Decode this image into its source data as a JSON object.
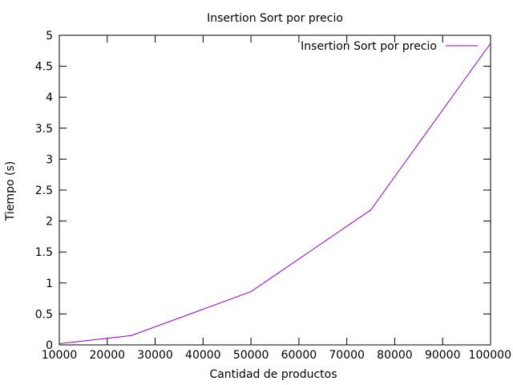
{
  "chart_data": {
    "type": "line",
    "title": "Insertion Sort por precio",
    "xlabel": "Cantidad de productos",
    "ylabel": "Tiempo (s)",
    "xlim": [
      10000,
      100000
    ],
    "ylim": [
      0,
      5
    ],
    "xticks": [
      10000,
      20000,
      30000,
      40000,
      50000,
      60000,
      70000,
      80000,
      90000,
      100000
    ],
    "yticks": [
      0,
      0.5,
      1,
      1.5,
      2,
      2.5,
      3,
      3.5,
      4,
      4.5,
      5
    ],
    "xtick_labels": [
      "10000",
      "20000",
      "30000",
      "40000",
      "50000",
      "60000",
      "70000",
      "80000",
      "90000",
      "100000"
    ],
    "ytick_labels": [
      "0",
      "0.5",
      "1",
      "1.5",
      "2",
      "2.5",
      "3",
      "3.5",
      "4",
      "4.5",
      "5"
    ],
    "grid": false,
    "legend_position": "top-right",
    "series": [
      {
        "name": "Insertion Sort por precio",
        "color": "#9400d3",
        "x": [
          10000,
          25000,
          50000,
          75000,
          100000
        ],
        "y": [
          0.02,
          0.15,
          0.86,
          2.18,
          4.87
        ]
      }
    ]
  }
}
